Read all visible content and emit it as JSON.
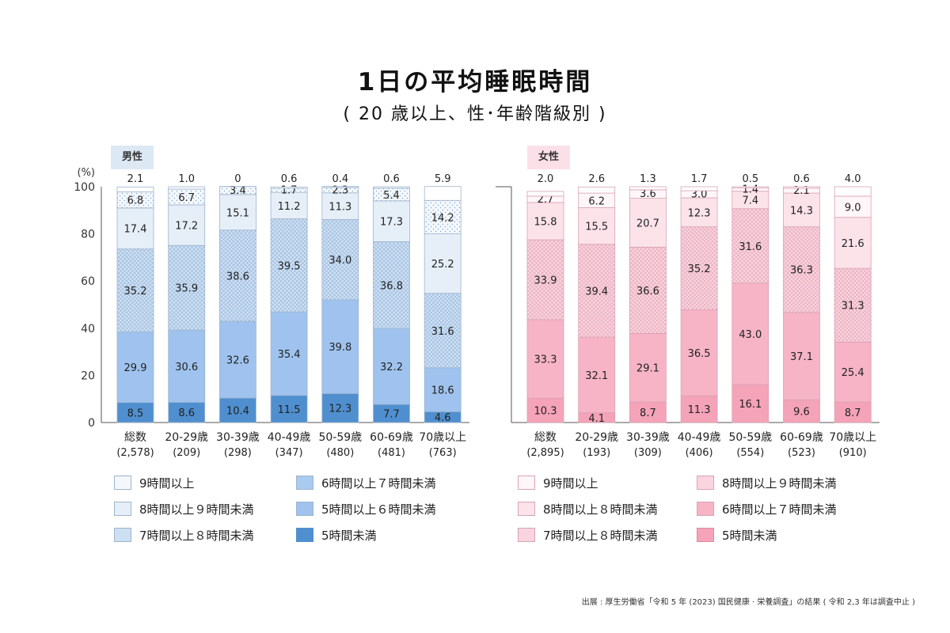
{
  "title": "1日の平均睡眠時間",
  "subtitle": "( 20 歳以上、性･年齢階級別 )",
  "source": "出展 : 厚生労働省「令和 5 年 (2023) 国民健康 · 栄養調査」の結果 ( 令和 2,3 年は調査中止 )",
  "colors": {
    "male": [
      "#4f8fcf",
      "#9fc3ee",
      "#a9cbef",
      "#cddff3",
      "#e6eff8",
      "#f4f8fc"
    ],
    "female": [
      "#f4a3b8",
      "#f6b4c6",
      "#f8c6d4",
      "#fad4df",
      "#fce3ea",
      "#fff6f9"
    ],
    "male_border": "#9fb4cc",
    "female_border": "#d9a3b3"
  },
  "chart_data": [
    {
      "type": "bar",
      "stacked": true,
      "panel_label": "男性",
      "y_unit": "(%)",
      "ylim": [
        0,
        100
      ],
      "yticks": [
        0,
        20,
        40,
        60,
        80,
        100
      ],
      "categories": [
        "総数",
        "20-29歳",
        "30-39歳",
        "40-49歳",
        "50-59歳",
        "60-69歳",
        "70歳以上"
      ],
      "counts": [
        "(2,578)",
        "(209)",
        "(298)",
        "(347)",
        "(480)",
        "(481)",
        "(763)"
      ],
      "series": [
        {
          "name": "5時間未満",
          "values": [
            8.5,
            8.6,
            10.4,
            11.5,
            12.3,
            7.7,
            4.6
          ]
        },
        {
          "name": "5時間以上６時間未満",
          "values": [
            29.9,
            30.6,
            32.6,
            35.4,
            39.8,
            32.2,
            18.6
          ]
        },
        {
          "name": "７時間以上８時間未満",
          "values": [
            35.2,
            35.9,
            38.6,
            39.5,
            34.0,
            36.8,
            31.6
          ]
        },
        {
          "name": "８時間以上９時間未満",
          "values": [
            17.4,
            17.2,
            15.1,
            11.2,
            11.3,
            17.3,
            25.2
          ]
        },
        {
          "name": "9時間以上",
          "values": [
            6.8,
            6.7,
            3.4,
            1.7,
            2.3,
            5.4,
            14.2
          ]
        },
        {
          "name": "",
          "values": [
            2.1,
            1.0,
            0,
            0.6,
            0.4,
            0.6,
            5.9
          ]
        }
      ],
      "labels": [
        [
          "8.5",
          "8.6",
          "10.4",
          "11.5",
          "12.3",
          "7.7",
          "4.6"
        ],
        [
          "29.9",
          "30.6",
          "32.6",
          "35.4",
          "39.8",
          "32.2",
          "18.6"
        ],
        [
          "35.2",
          "35.9",
          "38.6",
          "39.5",
          "34.0",
          "36.8",
          "31.6"
        ],
        [
          "17.4",
          "17.2",
          "15.1",
          "11.2",
          "11.3",
          "17.3",
          "25.2"
        ],
        [
          "6.8",
          "6.7",
          "3.4",
          "1.7",
          "2.3",
          "5.4",
          "14.2"
        ],
        [
          "2.1",
          "1.0",
          "0",
          "0.6",
          "0.4",
          "0.6",
          "5.9"
        ]
      ],
      "legend": [
        "9時間以上",
        "8時間以上９時間未満",
        "7時間以上８時間未満",
        "6時間以上７時間未満",
        "5時間以上６時間未満",
        "5時間未満"
      ]
    },
    {
      "type": "bar",
      "stacked": true,
      "panel_label": "女性",
      "ylim": [
        0,
        100
      ],
      "categories": [
        "総数",
        "20-29歳",
        "30-39歳",
        "40-49歳",
        "50-59歳",
        "60-69歳",
        "70歳以上"
      ],
      "counts": [
        "(2,895)",
        "(193)",
        "(309)",
        "(406)",
        "(554)",
        "(523)",
        "(910)"
      ],
      "series": [
        {
          "name": "5時間未満",
          "values": [
            10.3,
            4.1,
            8.7,
            11.3,
            16.1,
            9.6,
            8.7
          ]
        },
        {
          "name": "6時間以上７時間未満",
          "values": [
            33.3,
            32.1,
            29.1,
            36.5,
            43.0,
            37.1,
            25.4
          ]
        },
        {
          "name": "7時間以上８時間未満",
          "values": [
            33.9,
            39.4,
            36.6,
            35.2,
            31.6,
            36.3,
            31.3
          ]
        },
        {
          "name": "8時間以上８時間未満",
          "values": [
            15.8,
            15.5,
            20.7,
            12.3,
            7.4,
            14.3,
            21.6
          ]
        },
        {
          "name": "8時間以上９時間未満",
          "values": [
            2.7,
            6.2,
            3.6,
            3.0,
            1.4,
            2.1,
            9.0
          ]
        },
        {
          "name": "9時間以上",
          "values": [
            2.0,
            2.6,
            1.3,
            1.7,
            0.5,
            0.6,
            4.0
          ]
        }
      ],
      "labels": [
        [
          "10.3",
          "4.1",
          "8.7",
          "11.3",
          "16.1",
          "9.6",
          "8.7"
        ],
        [
          "33.3",
          "32.1",
          "29.1",
          "36.5",
          "43.0",
          "37.1",
          "25.4"
        ],
        [
          "33.9",
          "39.4",
          "36.6",
          "35.2",
          "31.6",
          "36.3",
          "31.3"
        ],
        [
          "15.8",
          "15.5",
          "20.7",
          "12.3",
          "7.4",
          "14.3",
          "21.6"
        ],
        [
          "2.7",
          "6.2",
          "3.6",
          "3.0",
          "1.4",
          "2.1",
          "9.0"
        ],
        [
          "2.0",
          "2.6",
          "1.3",
          "1.7",
          "0.5",
          "0.6",
          "4.0"
        ]
      ],
      "legend": [
        "9時間以上",
        "8時間以上９時間未満",
        "8時間以上８時間未満",
        "6時間以上７時間未満",
        "7時間以上８時間未満",
        "5時間未満"
      ]
    }
  ]
}
